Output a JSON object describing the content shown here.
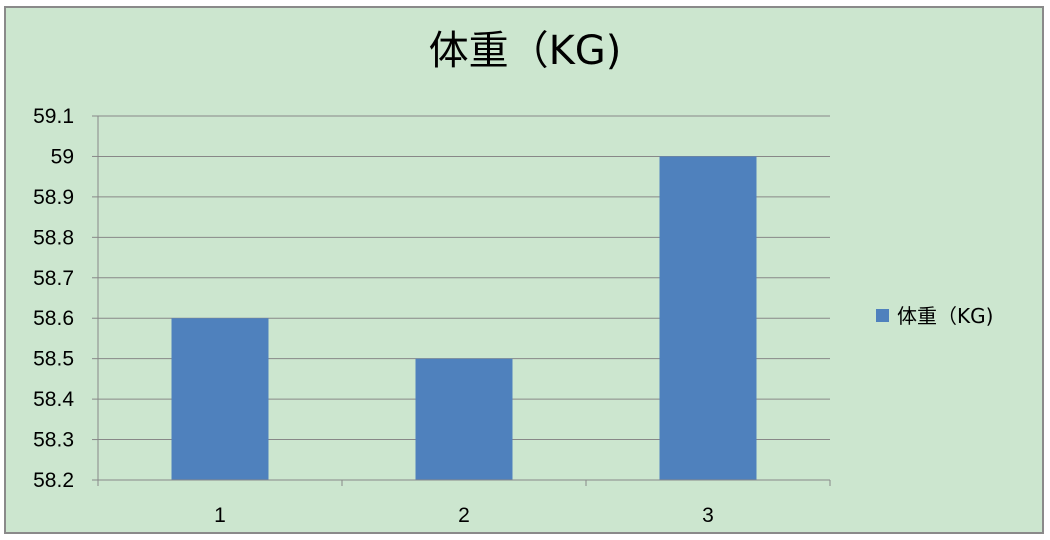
{
  "chart_data": {
    "type": "bar",
    "title": "体重（KG)",
    "xlabel": "",
    "ylabel": "",
    "categories": [
      "1",
      "2",
      "3"
    ],
    "series": [
      {
        "name": "体重（KG)",
        "values": [
          58.6,
          58.5,
          59.0
        ],
        "color": "#4f81bd"
      }
    ],
    "ylim": [
      58.2,
      59.1
    ],
    "yticks": [
      "58.2",
      "58.3",
      "58.4",
      "58.5",
      "58.6",
      "58.7",
      "58.8",
      "58.9",
      "59",
      "59.1"
    ],
    "grid": true,
    "legend_position": "right",
    "colors": {
      "background": "#cce6cf",
      "bar": "#4f81bd",
      "gridline": "#888888",
      "border": "#8a8a8a"
    }
  }
}
